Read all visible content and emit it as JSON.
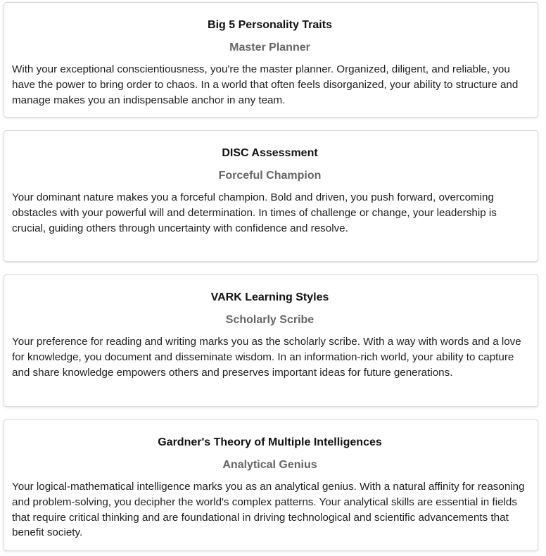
{
  "cards": [
    {
      "title": "Big 5 Personality Traits",
      "subtitle": "Master Planner",
      "body": "With your exceptional conscientiousness, you're the master planner. Organized, diligent, and reliable, you have the power to bring order to chaos. In a world that often feels disorganized, your ability to structure and manage makes you an indispensable anchor in any team."
    },
    {
      "title": "DISC Assessment",
      "subtitle": "Forceful Champion",
      "body": "Your dominant nature makes you a forceful champion. Bold and driven, you push forward, overcoming obstacles with your powerful will and determination. In times of challenge or change, your leadership is crucial, guiding others through uncertainty with confidence and resolve."
    },
    {
      "title": "VARK Learning Styles",
      "subtitle": "Scholarly Scribe",
      "body": "Your preference for reading and writing marks you as the scholarly scribe. With a way with words and a love for knowledge, you document and disseminate wisdom. In an information-rich world, your ability to capture and share knowledge empowers others and preserves important ideas for future generations."
    },
    {
      "title": "Gardner's Theory of Multiple Intelligences",
      "subtitle": "Analytical Genius",
      "body": "Your logical-mathematical intelligence marks you as an analytical genius. With a natural affinity for reasoning and problem-solving, you decipher the world's complex patterns. Your analytical skills are essential in fields that require critical thinking and are foundational in driving technological and scientific advancements that benefit society."
    }
  ],
  "colors": {
    "title": "#111111",
    "subtitle": "#666666",
    "body": "#202020",
    "card_border": "#d9d9d9",
    "background": "#ffffff"
  }
}
